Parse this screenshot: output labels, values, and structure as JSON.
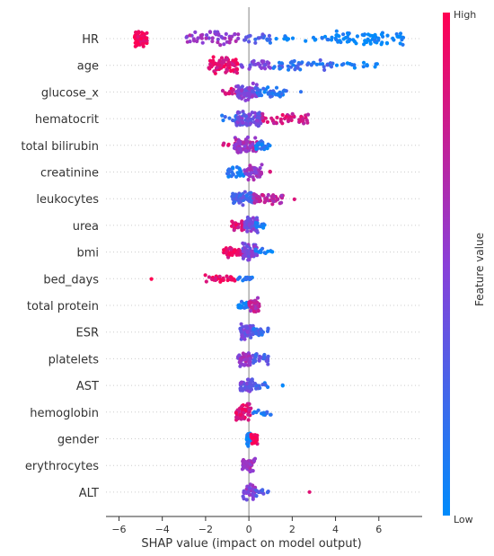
{
  "chart_data": {
    "type": "scatter",
    "subtype": "shap-beeswarm",
    "xlabel": "SHAP value (impact on model output)",
    "xlim": [
      -6.6,
      8.0
    ],
    "xticks": [
      -6,
      -4,
      -2,
      0,
      2,
      4,
      6
    ],
    "xtick_labels": [
      "−6",
      "−4",
      "−2",
      "0",
      "2",
      "4",
      "6"
    ],
    "colorbar": {
      "label": "Feature value",
      "high_label": "High",
      "low_label": "Low",
      "high_color": "#ff0052",
      "low_color": "#008bfb"
    },
    "features": [
      {
        "name": "HR",
        "clusters": [
          [
            -5.3,
            -4.7,
            1.0,
            85,
            0.95
          ],
          [
            -2.9,
            -0.4,
            0.8,
            50,
            0.55
          ],
          [
            -0.4,
            1.0,
            0.45,
            22,
            0.25
          ],
          [
            1.0,
            4.0,
            0.2,
            18,
            0.05
          ],
          [
            4.0,
            7.2,
            0.95,
            70,
            0.02
          ]
        ]
      },
      {
        "name": "age",
        "clusters": [
          [
            -1.9,
            -0.5,
            1.0,
            90,
            0.88
          ],
          [
            -0.5,
            1.0,
            0.5,
            30,
            0.45
          ],
          [
            1.0,
            4.0,
            0.6,
            45,
            0.2
          ],
          [
            4.0,
            6.0,
            0.25,
            16,
            0.05
          ]
        ]
      },
      {
        "name": "glucose_x",
        "clusters": [
          [
            -1.3,
            -0.5,
            0.35,
            16,
            0.85
          ],
          [
            -0.6,
            0.4,
            1.0,
            80,
            0.45
          ],
          [
            0.3,
            1.8,
            0.55,
            40,
            0.15
          ],
          [
            2.4,
            2.4,
            0.0,
            1,
            0.1
          ]
        ]
      },
      {
        "name": "hematocrit",
        "clusters": [
          [
            -1.3,
            -0.4,
            0.35,
            14,
            0.2
          ],
          [
            -0.6,
            0.6,
            1.0,
            80,
            0.4
          ],
          [
            0.6,
            2.8,
            0.6,
            50,
            0.8
          ]
        ]
      },
      {
        "name": "total bilirubin",
        "clusters": [
          [
            -1.2,
            -0.6,
            0.2,
            6,
            0.9
          ],
          [
            -0.7,
            0.4,
            1.0,
            70,
            0.6
          ],
          [
            0.3,
            1.0,
            0.55,
            25,
            0.1
          ]
        ]
      },
      {
        "name": "creatinine",
        "clusters": [
          [
            -1.0,
            -0.2,
            0.6,
            30,
            0.1
          ],
          [
            -0.2,
            0.6,
            0.9,
            45,
            0.55
          ],
          [
            0.8,
            1.0,
            0.0,
            2,
            0.85
          ]
        ]
      },
      {
        "name": "leukocytes",
        "clusters": [
          [
            -0.8,
            0.2,
            0.8,
            55,
            0.25
          ],
          [
            0.2,
            1.6,
            0.7,
            45,
            0.7
          ],
          [
            2.1,
            2.1,
            0.0,
            1,
            0.9
          ]
        ]
      },
      {
        "name": "urea",
        "clusters": [
          [
            -0.8,
            0.0,
            0.6,
            35,
            0.85
          ],
          [
            -0.2,
            0.4,
            1.0,
            55,
            0.45
          ],
          [
            0.3,
            0.8,
            0.35,
            12,
            0.1
          ]
        ]
      },
      {
        "name": "bmi",
        "clusters": [
          [
            -1.2,
            -0.2,
            0.6,
            45,
            0.9
          ],
          [
            -0.3,
            0.4,
            1.0,
            60,
            0.45
          ],
          [
            0.3,
            1.1,
            0.3,
            14,
            0.1
          ]
        ]
      },
      {
        "name": "bed_days",
        "clusters": [
          [
            -4.5,
            -4.5,
            0.0,
            1,
            0.95
          ],
          [
            -2.1,
            -0.6,
            0.35,
            30,
            0.92
          ],
          [
            -0.6,
            0.2,
            0.15,
            18,
            0.15
          ]
        ]
      },
      {
        "name": "total protein",
        "clusters": [
          [
            -0.5,
            0.0,
            0.55,
            25,
            0.1
          ],
          [
            0.0,
            0.5,
            0.9,
            40,
            0.7
          ]
        ]
      },
      {
        "name": "ESR",
        "clusters": [
          [
            -0.4,
            0.2,
            0.9,
            50,
            0.4
          ],
          [
            0.2,
            0.9,
            0.5,
            25,
            0.2
          ]
        ]
      },
      {
        "name": "platelets",
        "clusters": [
          [
            -0.5,
            0.1,
            0.9,
            50,
            0.55
          ],
          [
            0.1,
            0.9,
            0.6,
            30,
            0.3
          ]
        ]
      },
      {
        "name": "AST",
        "clusters": [
          [
            -0.4,
            0.2,
            0.7,
            45,
            0.4
          ],
          [
            0.2,
            1.0,
            0.35,
            15,
            0.2
          ],
          [
            1.3,
            1.6,
            0.0,
            2,
            0.1
          ]
        ]
      },
      {
        "name": "hemoglobin",
        "clusters": [
          [
            -0.6,
            0.1,
            1.0,
            55,
            0.85
          ],
          [
            0.1,
            1.1,
            0.35,
            16,
            0.15
          ]
        ]
      },
      {
        "name": "gender",
        "clusters": [
          [
            -0.1,
            0.1,
            0.8,
            40,
            0.05
          ],
          [
            0.1,
            0.4,
            0.6,
            30,
            0.95
          ]
        ]
      },
      {
        "name": "erythrocytes",
        "clusters": [
          [
            -0.3,
            0.3,
            1.0,
            50,
            0.6
          ]
        ]
      },
      {
        "name": "ALT",
        "clusters": [
          [
            -0.3,
            0.3,
            0.9,
            45,
            0.5
          ],
          [
            0.3,
            0.9,
            0.4,
            14,
            0.3
          ],
          [
            2.8,
            2.8,
            0.0,
            1,
            0.95
          ]
        ]
      }
    ]
  }
}
